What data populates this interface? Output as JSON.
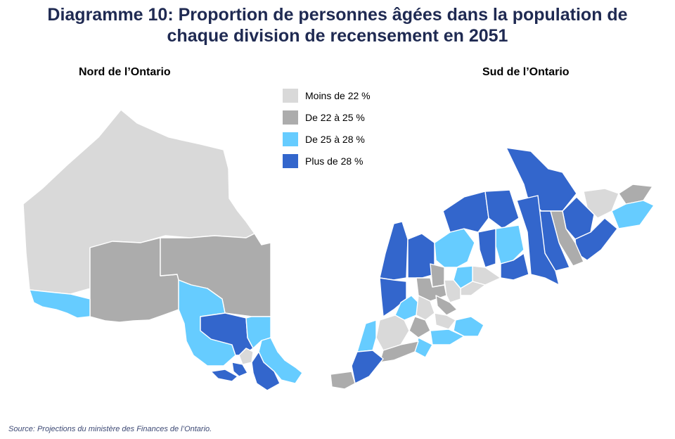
{
  "title": {
    "line1": "Diagramme 10: Proportion de personnes âgées dans la population de",
    "line2": "chaque division de recensement en 2051"
  },
  "maps": {
    "north_title": "Nord de l’Ontario",
    "south_title": "Sud de l’Ontario"
  },
  "legend": [
    {
      "label": "Moins de 22 %",
      "color": "#d9d9d9"
    },
    {
      "label": "De 22 à 25 %",
      "color": "#acacac"
    },
    {
      "label": "De 25 à 28 %",
      "color": "#66ccff"
    },
    {
      "label": "Plus de 28 %",
      "color": "#3366cc"
    }
  ],
  "source": "Source: Projections du ministère des Finances de l’Ontario."
}
